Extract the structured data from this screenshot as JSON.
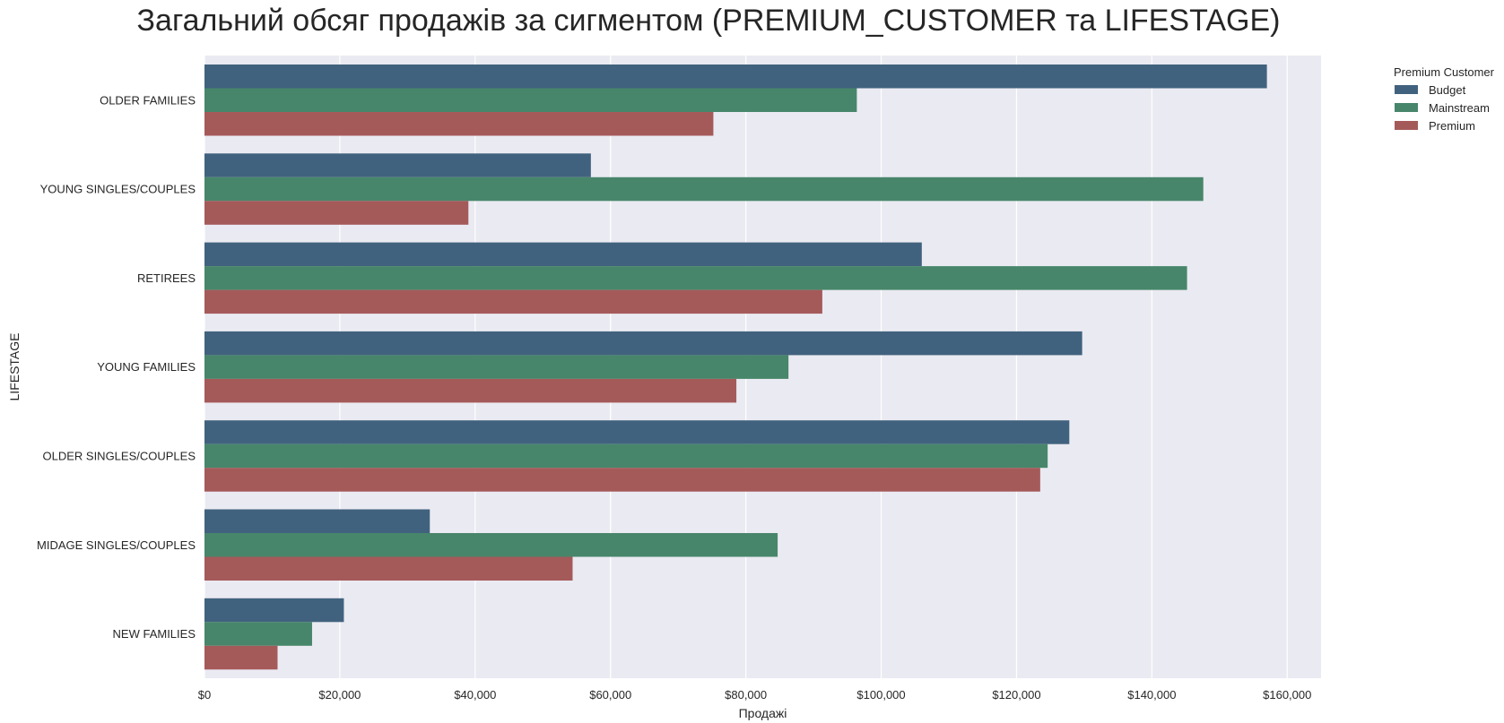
{
  "chart_data": {
    "type": "bar",
    "orientation": "horizontal",
    "title": "Загальний обсяг продажів за сигментом (PREMIUM_CUSTOMER та LIFESTAGE)",
    "xlabel": "Продажі",
    "ylabel": "LIFESTAGE",
    "xlim": [
      0,
      165000
    ],
    "x_ticks": [
      0,
      20000,
      40000,
      60000,
      80000,
      100000,
      120000,
      140000,
      160000
    ],
    "x_tick_labels": [
      "$0",
      "$20,000",
      "$40,000",
      "$60,000",
      "$80,000",
      "$100,000",
      "$120,000",
      "$140,000",
      "$160,000"
    ],
    "grid": true,
    "legend_title": "Premium Customer",
    "legend_position": "outside top-right",
    "categories": [
      "OLDER FAMILIES",
      "YOUNG SINGLES/COUPLES",
      "RETIREES",
      "YOUNG FAMILIES",
      "OLDER SINGLES/COUPLES",
      "MIDAGE SINGLES/COUPLES",
      "NEW FAMILIES"
    ],
    "series": [
      {
        "name": "Budget",
        "color": "#41627e",
        "values": [
          157000,
          57100,
          106000,
          129700,
          127800,
          33300,
          20600
        ]
      },
      {
        "name": "Mainstream",
        "color": "#47866a",
        "values": [
          96400,
          147600,
          145200,
          86300,
          124600,
          84700,
          15900
        ]
      },
      {
        "name": "Premium",
        "color": "#a55a5a",
        "values": [
          75200,
          39000,
          91300,
          78600,
          123500,
          54400,
          10800
        ]
      }
    ],
    "plot_background": "#eaeaf2"
  }
}
